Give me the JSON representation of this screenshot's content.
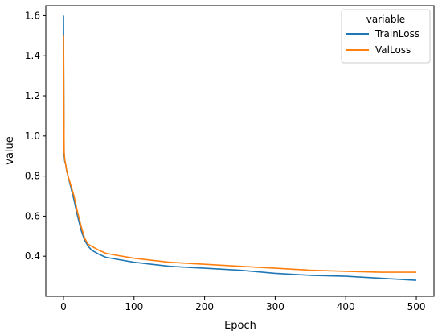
{
  "chart_data": {
    "type": "line",
    "title": "",
    "xlabel": "Epoch",
    "ylabel": "value",
    "xlim": [
      -25,
      525
    ],
    "ylim": [
      0.2,
      1.65
    ],
    "xticks": [
      0,
      100,
      200,
      300,
      400,
      500
    ],
    "yticks": [
      0.4,
      0.6,
      0.8,
      1.0,
      1.2,
      1.4,
      1.6
    ],
    "xtick_labels": [
      "0",
      "100",
      "200",
      "300",
      "400",
      "500"
    ],
    "ytick_labels": [
      "0.4",
      "0.6",
      "0.8",
      "1.0",
      "1.2",
      "1.4",
      "1.6"
    ],
    "grid": false,
    "legend": {
      "title": "variable",
      "placement": "top-right",
      "entries": [
        "TrainLoss",
        "ValLoss"
      ]
    },
    "series": [
      {
        "name": "TrainLoss",
        "color": "#1f77b4",
        "x": [
          0,
          1,
          2,
          3,
          5,
          10,
          15,
          20,
          25,
          30,
          35,
          40,
          50,
          60,
          75,
          100,
          125,
          150,
          175,
          200,
          250,
          300,
          350,
          400,
          450,
          500
        ],
        "y": [
          1.6,
          0.9,
          0.87,
          0.86,
          0.82,
          0.75,
          0.68,
          0.6,
          0.53,
          0.48,
          0.45,
          0.43,
          0.41,
          0.395,
          0.385,
          0.37,
          0.36,
          0.35,
          0.345,
          0.34,
          0.33,
          0.315,
          0.305,
          0.3,
          0.29,
          0.28
        ]
      },
      {
        "name": "ValLoss",
        "color": "#ff7f0e",
        "x": [
          0,
          1,
          2,
          3,
          5,
          10,
          15,
          20,
          25,
          30,
          35,
          40,
          50,
          60,
          75,
          100,
          125,
          150,
          175,
          200,
          250,
          300,
          350,
          400,
          450,
          500
        ],
        "y": [
          1.5,
          0.92,
          0.88,
          0.86,
          0.82,
          0.76,
          0.7,
          0.62,
          0.55,
          0.49,
          0.46,
          0.45,
          0.43,
          0.415,
          0.405,
          0.39,
          0.38,
          0.37,
          0.365,
          0.36,
          0.35,
          0.34,
          0.33,
          0.325,
          0.32,
          0.32
        ]
      }
    ]
  }
}
